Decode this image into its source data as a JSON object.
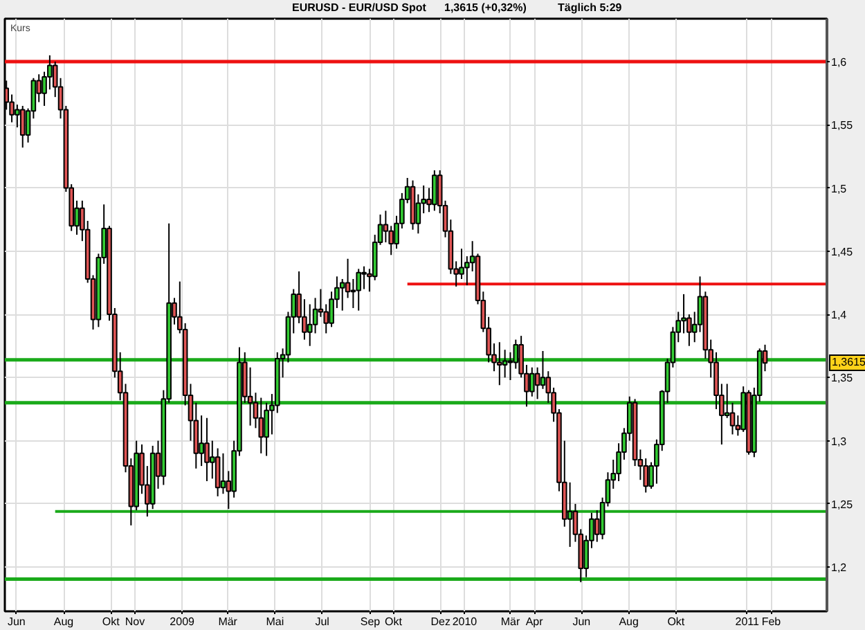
{
  "chart_data": {
    "type": "candlestick",
    "title": "EURUSD - EUR/USD Spot",
    "subtitle": "1,3615 (+0,32%)",
    "ylabel": "Kurs",
    "annotations": [
      "Täglich 5:29",
      {
        "text": "1,3615",
        "y": 1.3615
      }
    ],
    "x": [
      "2008-05-19",
      "2008-05-26",
      "2008-06-02",
      "2008-06-09",
      "2008-06-16",
      "2008-06-23",
      "2008-06-30",
      "2008-07-07",
      "2008-07-14",
      "2008-07-21",
      "2008-07-28",
      "2008-08-04",
      "2008-08-11",
      "2008-08-18",
      "2008-08-25",
      "2008-09-01",
      "2008-09-08",
      "2008-09-15",
      "2008-09-22",
      "2008-09-29",
      "2008-10-06",
      "2008-10-13",
      "2008-10-20",
      "2008-10-27",
      "2008-11-03",
      "2008-11-10",
      "2008-11-17",
      "2008-11-24",
      "2008-12-01",
      "2008-12-08",
      "2008-12-15",
      "2008-12-22",
      "2008-12-29",
      "2009-01-05",
      "2009-01-12",
      "2009-01-19",
      "2009-01-26",
      "2009-02-02",
      "2009-02-09",
      "2009-02-16",
      "2009-02-23",
      "2009-03-02",
      "2009-03-09",
      "2009-03-16",
      "2009-03-23",
      "2009-03-30",
      "2009-04-06",
      "2009-04-13",
      "2009-04-20",
      "2009-04-27",
      "2009-05-04",
      "2009-05-11",
      "2009-05-18",
      "2009-05-25",
      "2009-06-01",
      "2009-06-08",
      "2009-06-15",
      "2009-06-22",
      "2009-06-29",
      "2009-07-06",
      "2009-07-13",
      "2009-07-20",
      "2009-07-27",
      "2009-08-03",
      "2009-08-10",
      "2009-08-17",
      "2009-08-24",
      "2009-08-31",
      "2009-09-07",
      "2009-09-14",
      "2009-09-21",
      "2009-09-28",
      "2009-10-05",
      "2009-10-12",
      "2009-10-19",
      "2009-10-26",
      "2009-11-02",
      "2009-11-09",
      "2009-11-16",
      "2009-11-23",
      "2009-11-30",
      "2009-12-07",
      "2009-12-14",
      "2009-12-21",
      "2009-12-28",
      "2010-01-04",
      "2010-01-11",
      "2010-01-18",
      "2010-01-25",
      "2010-02-01",
      "2010-02-08",
      "2010-02-15",
      "2010-02-22",
      "2010-03-01",
      "2010-03-08",
      "2010-03-15",
      "2010-03-22",
      "2010-03-29",
      "2010-04-05",
      "2010-04-12",
      "2010-04-19",
      "2010-04-26",
      "2010-05-03",
      "2010-05-10",
      "2010-05-17",
      "2010-05-24",
      "2010-05-31",
      "2010-06-07",
      "2010-06-14",
      "2010-06-21",
      "2010-06-28",
      "2010-07-05",
      "2010-07-12",
      "2010-07-19",
      "2010-07-26",
      "2010-08-02",
      "2010-08-09",
      "2010-08-16",
      "2010-08-23",
      "2010-08-30",
      "2010-09-06",
      "2010-09-13",
      "2010-09-20",
      "2010-09-27",
      "2010-10-04",
      "2010-10-11",
      "2010-10-18",
      "2010-10-25",
      "2010-11-01",
      "2010-11-08",
      "2010-11-15",
      "2010-11-22",
      "2010-11-29",
      "2010-12-06",
      "2010-12-13",
      "2010-12-20",
      "2010-12-27",
      "2011-01-03",
      "2011-01-10",
      "2011-01-17",
      "2011-01-24"
    ],
    "ohlc": [
      [
        1.579,
        1.585,
        1.562,
        1.568
      ],
      [
        1.568,
        1.574,
        1.552,
        1.558
      ],
      [
        1.558,
        1.566,
        1.548,
        1.562
      ],
      [
        1.562,
        1.565,
        1.532,
        1.542
      ],
      [
        1.542,
        1.563,
        1.536,
        1.561
      ],
      [
        1.561,
        1.587,
        1.555,
        1.585
      ],
      [
        1.585,
        1.59,
        1.568,
        1.575
      ],
      [
        1.575,
        1.592,
        1.565,
        1.588
      ],
      [
        1.588,
        1.605,
        1.578,
        1.597
      ],
      [
        1.597,
        1.6,
        1.572,
        1.58
      ],
      [
        1.58,
        1.587,
        1.555,
        1.562
      ],
      [
        1.562,
        1.565,
        1.497,
        1.5
      ],
      [
        1.5,
        1.503,
        1.466,
        1.47
      ],
      [
        1.47,
        1.49,
        1.463,
        1.484
      ],
      [
        1.484,
        1.49,
        1.458,
        1.467
      ],
      [
        1.467,
        1.474,
        1.425,
        1.428
      ],
      [
        1.428,
        1.431,
        1.388,
        1.396
      ],
      [
        1.396,
        1.448,
        1.39,
        1.445
      ],
      [
        1.445,
        1.487,
        1.44,
        1.468
      ],
      [
        1.468,
        1.47,
        1.395,
        1.4
      ],
      [
        1.4,
        1.405,
        1.35,
        1.355
      ],
      [
        1.355,
        1.37,
        1.332,
        1.338
      ],
      [
        1.338,
        1.345,
        1.275,
        1.28
      ],
      [
        1.28,
        1.286,
        1.233,
        1.248
      ],
      [
        1.248,
        1.3,
        1.245,
        1.29
      ],
      [
        1.29,
        1.297,
        1.258,
        1.265
      ],
      [
        1.265,
        1.28,
        1.24,
        1.25
      ],
      [
        1.25,
        1.296,
        1.246,
        1.29
      ],
      [
        1.29,
        1.3,
        1.262,
        1.272
      ],
      [
        1.272,
        1.34,
        1.265,
        1.333
      ],
      [
        1.333,
        1.472,
        1.33,
        1.409
      ],
      [
        1.409,
        1.413,
        1.392,
        1.398
      ],
      [
        1.398,
        1.426,
        1.385,
        1.388
      ],
      [
        1.388,
        1.393,
        1.328,
        1.336
      ],
      [
        1.336,
        1.345,
        1.3,
        1.316
      ],
      [
        1.316,
        1.33,
        1.278,
        1.29
      ],
      [
        1.29,
        1.32,
        1.28,
        1.298
      ],
      [
        1.298,
        1.318,
        1.268,
        1.283
      ],
      [
        1.283,
        1.3,
        1.27,
        1.287
      ],
      [
        1.287,
        1.294,
        1.256,
        1.263
      ],
      [
        1.263,
        1.29,
        1.258,
        1.268
      ],
      [
        1.268,
        1.276,
        1.246,
        1.26
      ],
      [
        1.26,
        1.3,
        1.255,
        1.292
      ],
      [
        1.292,
        1.374,
        1.288,
        1.362
      ],
      [
        1.362,
        1.37,
        1.33,
        1.335
      ],
      [
        1.335,
        1.358,
        1.312,
        1.33
      ],
      [
        1.33,
        1.338,
        1.31,
        1.318
      ],
      [
        1.318,
        1.334,
        1.29,
        1.303
      ],
      [
        1.303,
        1.33,
        1.288,
        1.324
      ],
      [
        1.324,
        1.337,
        1.305,
        1.328
      ],
      [
        1.328,
        1.37,
        1.322,
        1.365
      ],
      [
        1.365,
        1.373,
        1.35,
        1.368
      ],
      [
        1.368,
        1.402,
        1.362,
        1.398
      ],
      [
        1.398,
        1.42,
        1.385,
        1.416
      ],
      [
        1.416,
        1.434,
        1.393,
        1.398
      ],
      [
        1.398,
        1.412,
        1.38,
        1.386
      ],
      [
        1.386,
        1.408,
        1.375,
        1.392
      ],
      [
        1.392,
        1.413,
        1.385,
        1.404
      ],
      [
        1.404,
        1.42,
        1.398,
        1.402
      ],
      [
        1.402,
        1.408,
        1.385,
        1.393
      ],
      [
        1.393,
        1.418,
        1.39,
        1.412
      ],
      [
        1.412,
        1.43,
        1.405,
        1.421
      ],
      [
        1.421,
        1.428,
        1.403,
        1.425
      ],
      [
        1.425,
        1.444,
        1.413,
        1.418
      ],
      [
        1.418,
        1.428,
        1.405,
        1.419
      ],
      [
        1.419,
        1.436,
        1.403,
        1.433
      ],
      [
        1.433,
        1.438,
        1.42,
        1.432
      ],
      [
        1.432,
        1.436,
        1.418,
        1.43
      ],
      [
        1.43,
        1.463,
        1.427,
        1.457
      ],
      [
        1.457,
        1.479,
        1.455,
        1.471
      ],
      [
        1.471,
        1.482,
        1.457,
        1.466
      ],
      [
        1.466,
        1.47,
        1.447,
        1.456
      ],
      [
        1.456,
        1.478,
        1.452,
        1.472
      ],
      [
        1.472,
        1.496,
        1.468,
        1.491
      ],
      [
        1.491,
        1.508,
        1.488,
        1.501
      ],
      [
        1.501,
        1.506,
        1.467,
        1.472
      ],
      [
        1.472,
        1.495,
        1.464,
        1.488
      ],
      [
        1.488,
        1.502,
        1.48,
        1.491
      ],
      [
        1.491,
        1.5,
        1.481,
        1.487
      ],
      [
        1.487,
        1.514,
        1.482,
        1.51
      ],
      [
        1.51,
        1.514,
        1.48,
        1.486
      ],
      [
        1.486,
        1.49,
        1.461,
        1.466
      ],
      [
        1.466,
        1.475,
        1.432,
        1.436
      ],
      [
        1.436,
        1.442,
        1.422,
        1.432
      ],
      [
        1.432,
        1.452,
        1.428,
        1.437
      ],
      [
        1.437,
        1.446,
        1.423,
        1.441
      ],
      [
        1.441,
        1.458,
        1.434,
        1.446
      ],
      [
        1.446,
        1.448,
        1.408,
        1.411
      ],
      [
        1.411,
        1.418,
        1.386,
        1.389
      ],
      [
        1.389,
        1.398,
        1.362,
        1.368
      ],
      [
        1.368,
        1.377,
        1.355,
        1.362
      ],
      [
        1.362,
        1.378,
        1.344,
        1.36
      ],
      [
        1.36,
        1.372,
        1.35,
        1.363
      ],
      [
        1.363,
        1.37,
        1.348,
        1.362
      ],
      [
        1.362,
        1.38,
        1.357,
        1.376
      ],
      [
        1.376,
        1.383,
        1.35,
        1.353
      ],
      [
        1.353,
        1.36,
        1.327,
        1.339
      ],
      [
        1.339,
        1.358,
        1.335,
        1.353
      ],
      [
        1.353,
        1.358,
        1.333,
        1.344
      ],
      [
        1.344,
        1.371,
        1.341,
        1.35
      ],
      [
        1.35,
        1.355,
        1.33,
        1.338
      ],
      [
        1.338,
        1.342,
        1.315,
        1.322
      ],
      [
        1.322,
        1.325,
        1.26,
        1.267
      ],
      [
        1.267,
        1.3,
        1.232,
        1.238
      ],
      [
        1.238,
        1.267,
        1.216,
        1.244
      ],
      [
        1.244,
        1.25,
        1.22,
        1.226
      ],
      [
        1.226,
        1.23,
        1.188,
        1.199
      ],
      [
        1.199,
        1.225,
        1.192,
        1.221
      ],
      [
        1.221,
        1.243,
        1.215,
        1.238
      ],
      [
        1.238,
        1.245,
        1.22,
        1.226
      ],
      [
        1.226,
        1.255,
        1.222,
        1.251
      ],
      [
        1.251,
        1.275,
        1.248,
        1.269
      ],
      [
        1.269,
        1.285,
        1.262,
        1.274
      ],
      [
        1.274,
        1.298,
        1.268,
        1.291
      ],
      [
        1.291,
        1.31,
        1.285,
        1.306
      ],
      [
        1.306,
        1.335,
        1.3,
        1.33
      ],
      [
        1.33,
        1.333,
        1.28,
        1.285
      ],
      [
        1.285,
        1.293,
        1.269,
        1.28
      ],
      [
        1.28,
        1.286,
        1.259,
        1.264
      ],
      [
        1.264,
        1.283,
        1.262,
        1.28
      ],
      [
        1.28,
        1.301,
        1.266,
        1.297
      ],
      [
        1.297,
        1.34,
        1.292,
        1.339
      ],
      [
        1.339,
        1.365,
        1.33,
        1.362
      ],
      [
        1.362,
        1.39,
        1.358,
        1.386
      ],
      [
        1.386,
        1.402,
        1.378,
        1.395
      ],
      [
        1.395,
        1.416,
        1.385,
        1.397
      ],
      [
        1.397,
        1.4,
        1.375,
        1.386
      ],
      [
        1.386,
        1.402,
        1.378,
        1.392
      ],
      [
        1.392,
        1.43,
        1.386,
        1.414
      ],
      [
        1.414,
        1.418,
        1.365,
        1.372
      ],
      [
        1.372,
        1.38,
        1.35,
        1.362
      ],
      [
        1.362,
        1.37,
        1.325,
        1.336
      ],
      [
        1.336,
        1.345,
        1.297,
        1.32
      ],
      [
        1.32,
        1.345,
        1.318,
        1.322
      ],
      [
        1.322,
        1.33,
        1.305,
        1.312
      ],
      [
        1.312,
        1.32,
        1.304,
        1.309
      ],
      [
        1.309,
        1.343,
        1.307,
        1.338
      ],
      [
        1.338,
        1.34,
        1.289,
        1.291
      ],
      [
        1.291,
        1.342,
        1.287,
        1.336
      ],
      [
        1.336,
        1.373,
        1.331,
        1.371
      ],
      [
        1.371,
        1.376,
        1.355,
        1.3615
      ]
    ],
    "colors": [
      "#e05555",
      "#e05555",
      "#33cc33",
      "#e05555",
      "#33cc33",
      "#33cc33",
      "#e05555",
      "#33cc33",
      "#33cc33",
      "#e05555",
      "#e05555",
      "#e05555",
      "#e05555",
      "#33cc33",
      "#e05555",
      "#e05555",
      "#e05555",
      "#33cc33",
      "#33cc33",
      "#e05555",
      "#e05555",
      "#e05555",
      "#e05555",
      "#e05555",
      "#33cc33",
      "#e05555",
      "#e05555",
      "#33cc33",
      "#e05555",
      "#33cc33",
      "#33cc33",
      "#e05555",
      "#e05555",
      "#e05555",
      "#e05555",
      "#e05555",
      "#33cc33",
      "#e05555",
      "#33cc33",
      "#e05555",
      "#33cc33",
      "#e05555",
      "#33cc33",
      "#33cc33",
      "#e05555",
      "#e05555",
      "#e05555",
      "#e05555",
      "#33cc33",
      "#33cc33",
      "#33cc33",
      "#33cc33",
      "#33cc33",
      "#33cc33",
      "#e05555",
      "#e05555",
      "#33cc33",
      "#33cc33",
      "#e05555",
      "#e05555",
      "#33cc33",
      "#33cc33",
      "#33cc33",
      "#e05555",
      "#33cc33",
      "#33cc33",
      "#e05555",
      "#e05555",
      "#33cc33",
      "#33cc33",
      "#e05555",
      "#e05555",
      "#33cc33",
      "#33cc33",
      "#33cc33",
      "#e05555",
      "#33cc33",
      "#33cc33",
      "#e05555",
      "#33cc33",
      "#e05555",
      "#e05555",
      "#e05555",
      "#e05555",
      "#33cc33",
      "#33cc33",
      "#33cc33",
      "#e05555",
      "#e05555",
      "#e05555",
      "#e05555",
      "#e05555",
      "#33cc33",
      "#e05555",
      "#33cc33",
      "#e05555",
      "#e05555",
      "#33cc33",
      "#e05555",
      "#33cc33",
      "#e05555",
      "#e05555",
      "#e05555",
      "#e05555",
      "#33cc33",
      "#e05555",
      "#e05555",
      "#33cc33",
      "#33cc33",
      "#e05555",
      "#33cc33",
      "#33cc33",
      "#33cc33",
      "#33cc33",
      "#33cc33",
      "#33cc33",
      "#e05555",
      "#e05555",
      "#e05555",
      "#33cc33",
      "#33cc33",
      "#33cc33",
      "#33cc33",
      "#33cc33",
      "#33cc33",
      "#33cc33",
      "#e05555",
      "#33cc33",
      "#33cc33",
      "#e05555",
      "#e05555",
      "#e05555",
      "#e05555",
      "#33cc33",
      "#e05555",
      "#e05555",
      "#33cc33",
      "#e05555",
      "#33cc33",
      "#33cc33",
      "#e05555"
    ],
    "series": [
      {
        "type": "line",
        "color": "#ee1111",
        "x": [
          "2009-10-19",
          "2011-04-14"
        ],
        "values": [
          1.424,
          1.424
        ]
      },
      {
        "type": "line",
        "color": "#1aaa1a",
        "x": [
          "2008-07-21",
          "2011-04-14"
        ],
        "values": [
          1.244,
          1.244
        ]
      }
    ],
    "ref_lines": [
      {
        "axis": "y",
        "value": 1.6,
        "color": "#ee1111"
      },
      {
        "axis": "y",
        "value": 1.364,
        "color": "#1aaa1a"
      },
      {
        "axis": "y",
        "value": 1.33,
        "color": "#1aaa1a"
      },
      {
        "axis": "y",
        "value": 1.1905,
        "color": "#1aaa1a"
      }
    ],
    "xlim": [
      "2008-05-17",
      "2011-04-14"
    ],
    "ylim": [
      1.165,
      1.634
    ],
    "xticks": [
      {
        "value": "2008-06-01",
        "label": "Jun"
      },
      {
        "value": "2008-08-01",
        "label": "Aug"
      },
      {
        "value": "2008-10-01",
        "label": "Okt"
      },
      {
        "value": "2008-11-01",
        "label": "Nov"
      },
      {
        "value": "2009-01-01",
        "label": "2009"
      },
      {
        "value": "2009-03-01",
        "label": "Mär"
      },
      {
        "value": "2009-05-01",
        "label": "Mai"
      },
      {
        "value": "2009-07-01",
        "label": "Jul"
      },
      {
        "value": "2009-09-01",
        "label": "Sep"
      },
      {
        "value": "2009-10-01",
        "label": "Okt"
      },
      {
        "value": "2009-12-01",
        "label": "Dez"
      },
      {
        "value": "2010-01-01",
        "label": "2010"
      },
      {
        "value": "2010-03-01",
        "label": "Mär"
      },
      {
        "value": "2010-04-01",
        "label": "Apr"
      },
      {
        "value": "2010-06-01",
        "label": "Jun"
      },
      {
        "value": "2010-08-01",
        "label": "Aug"
      },
      {
        "value": "2010-10-01",
        "label": "Okt"
      },
      {
        "value": "2011-01-01",
        "label": "2011"
      },
      {
        "value": "2011-02-01",
        "label": "Feb"
      }
    ],
    "yticks": [
      {
        "value": 1.2,
        "label": "1,2"
      },
      {
        "value": 1.25,
        "label": "1,25"
      },
      {
        "value": 1.3,
        "label": "1,3"
      },
      {
        "value": 1.35,
        "label": "1,35"
      },
      {
        "value": 1.4,
        "label": "1,4"
      },
      {
        "value": 1.45,
        "label": "1,45"
      },
      {
        "value": 1.5,
        "label": "1,5"
      },
      {
        "value": 1.55,
        "label": "1,55"
      },
      {
        "value": 1.6,
        "label": "1,6"
      }
    ],
    "grid": true
  }
}
